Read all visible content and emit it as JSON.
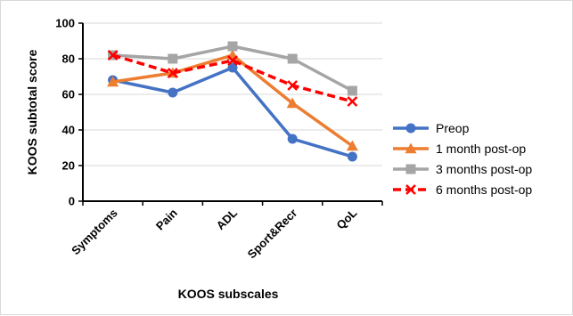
{
  "chart_data": {
    "type": "line",
    "title": "",
    "xlabel": "KOOS subscales",
    "ylabel": "KOOS subtotal score",
    "ylim": [
      0,
      100
    ],
    "yticks": [
      0,
      20,
      40,
      60,
      80,
      100
    ],
    "grid": true,
    "legend_position": "right",
    "categories": [
      "Symptoms",
      "Pain",
      "ADL",
      "Sport&Recr",
      "QoL"
    ],
    "series": [
      {
        "name": "Preop",
        "values": [
          68,
          61,
          75,
          35,
          25
        ],
        "color": "#4472c4",
        "marker": "circle",
        "dash": "solid"
      },
      {
        "name": "1 month post-op",
        "values": [
          67,
          72,
          82,
          55,
          31
        ],
        "color": "#ed7d31",
        "marker": "triangle",
        "dash": "solid"
      },
      {
        "name": "3 months post-op",
        "values": [
          82,
          80,
          87,
          80,
          62
        ],
        "color": "#a5a5a5",
        "marker": "square",
        "dash": "solid"
      },
      {
        "name": "6 months post-op",
        "values": [
          82,
          72,
          79,
          65,
          56
        ],
        "color": "#ff0000",
        "marker": "x",
        "dash": "dashed"
      }
    ]
  }
}
